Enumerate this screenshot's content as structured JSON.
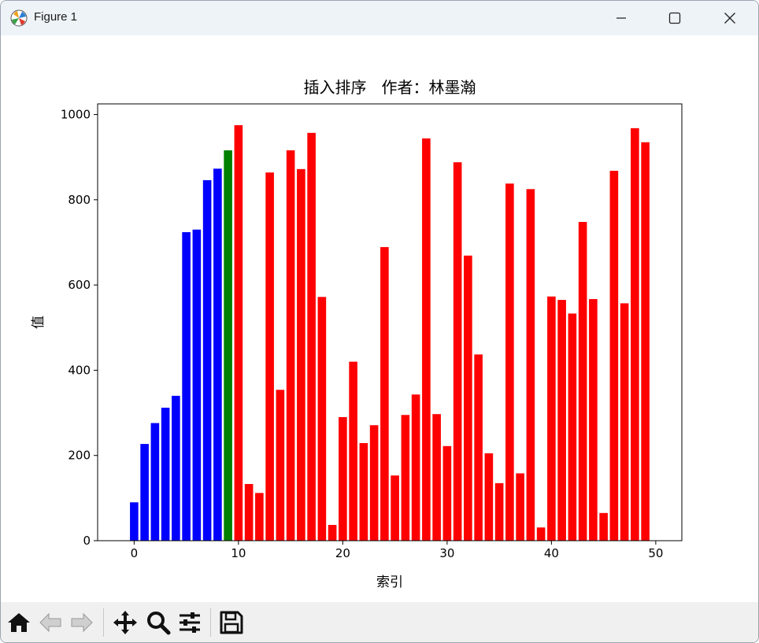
{
  "window": {
    "title": "Figure 1"
  },
  "icons": {
    "app": "matplotlib-icon",
    "minimize": "minimize-icon",
    "maximize": "maximize-icon",
    "close": "close-icon"
  },
  "toolbar": {
    "tools": [
      "home-icon",
      "back-arrow-icon",
      "forward-arrow-icon",
      "pan-icon",
      "zoom-icon",
      "configure-subplots-icon",
      "save-icon"
    ]
  },
  "colors": {
    "sorted": "#0000ff",
    "current": "#008000",
    "unsorted": "#ff0000"
  },
  "chart_data": {
    "type": "bar",
    "title": "插入排序   作者：林墨瀚",
    "xlabel": "索引",
    "ylabel": "值",
    "xlim": [
      -3.5,
      52.5
    ],
    "ylim": [
      0,
      1025
    ],
    "xticks": [
      0,
      10,
      20,
      30,
      40,
      50
    ],
    "yticks": [
      0,
      200,
      400,
      600,
      800,
      1000
    ],
    "grid": false,
    "values": [
      90,
      227,
      276,
      312,
      340,
      724,
      730,
      846,
      873,
      916,
      975,
      133,
      112,
      864,
      354,
      916,
      872,
      957,
      572,
      37,
      290,
      420,
      229,
      271,
      689,
      153,
      295,
      343,
      944,
      297,
      222,
      888,
      669,
      437,
      205,
      135,
      838,
      158,
      825,
      31,
      573,
      565,
      533,
      748,
      567,
      65,
      868,
      557,
      968,
      935
    ],
    "bar_colors": [
      "blue",
      "blue",
      "blue",
      "blue",
      "blue",
      "blue",
      "blue",
      "blue",
      "blue",
      "green",
      "red",
      "red",
      "red",
      "red",
      "red",
      "red",
      "red",
      "red",
      "red",
      "red",
      "red",
      "red",
      "red",
      "red",
      "red",
      "red",
      "red",
      "red",
      "red",
      "red",
      "red",
      "red",
      "red",
      "red",
      "red",
      "red",
      "red",
      "red",
      "red",
      "red",
      "red",
      "red",
      "red",
      "red",
      "red",
      "red",
      "red",
      "red",
      "red",
      "red"
    ]
  }
}
